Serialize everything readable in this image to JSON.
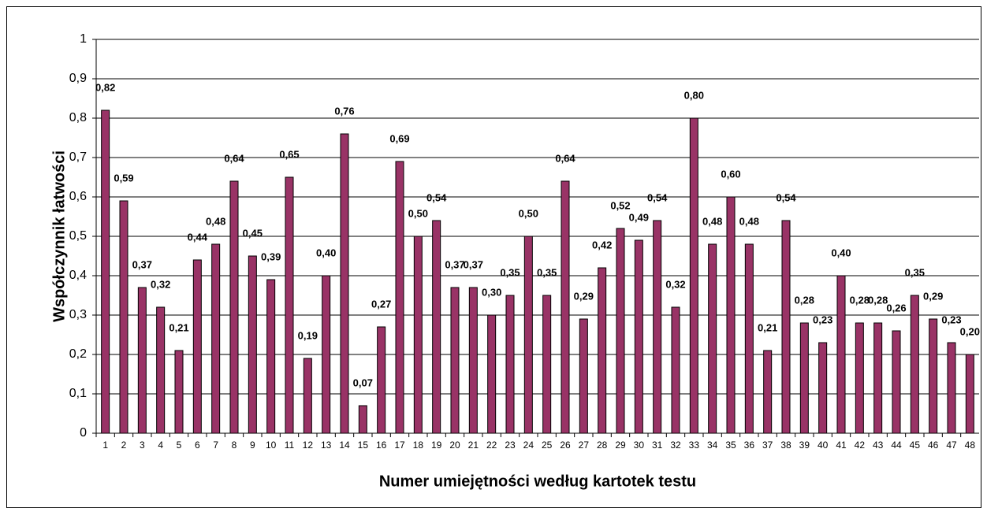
{
  "chart_data": {
    "type": "bar",
    "x_label": "Numer umiejętności według kartotek testu",
    "y_label": "Współczynnik łatwości",
    "categories": [
      "1",
      "2",
      "3",
      "4",
      "5",
      "6",
      "7",
      "8",
      "9",
      "10",
      "11",
      "12",
      "13",
      "14",
      "15",
      "16",
      "17",
      "18",
      "19",
      "20",
      "21",
      "22",
      "23",
      "24",
      "25",
      "26",
      "27",
      "28",
      "29",
      "30",
      "31",
      "32",
      "33",
      "34",
      "35",
      "36",
      "37",
      "38",
      "39",
      "40",
      "41",
      "42",
      "43",
      "44",
      "45",
      "46",
      "47",
      "48"
    ],
    "values": [
      0.82,
      0.59,
      0.37,
      0.32,
      0.21,
      0.44,
      0.48,
      0.64,
      0.45,
      0.39,
      0.65,
      0.19,
      0.4,
      0.76,
      0.07,
      0.27,
      0.69,
      0.5,
      0.54,
      0.37,
      0.37,
      0.3,
      0.35,
      0.5,
      0.35,
      0.64,
      0.29,
      0.42,
      0.52,
      0.49,
      0.54,
      0.32,
      0.8,
      0.48,
      0.6,
      0.48,
      0.21,
      0.54,
      0.28,
      0.23,
      0.4,
      0.28,
      0.28,
      0.26,
      0.35,
      0.29,
      0.23,
      0.2
    ],
    "value_labels": [
      "0,82",
      "0,59",
      "0,37",
      "0,32",
      "0,21",
      "0,44",
      "0,48",
      "0,64",
      "0,45",
      "0,39",
      "0,65",
      "0,19",
      "0,40",
      "0,76",
      "0,07",
      "0,27",
      "0,69",
      "0,50",
      "0,54",
      "0,37",
      "0,37",
      "0,30",
      "0,35",
      "0,50",
      "0,35",
      "0,64",
      "0,29",
      "0,42",
      "0,52",
      "0,49",
      "0,54",
      "0,32",
      "0,80",
      "0,48",
      "0,60",
      "0,48",
      "0,21",
      "0,54",
      "0,28",
      "0,23",
      "0,40",
      "0,28",
      "0,28",
      "0,26",
      "0,35",
      "0,29",
      "0,23",
      "0,20"
    ],
    "color": "#993366",
    "ylim": [
      0,
      1
    ],
    "yticks": [
      0,
      {
        "value": 0.1,
        "label": "0,1"
      },
      {
        "value": 0.2,
        "label": "0,2"
      },
      {
        "value": 0.3,
        "label": "0,3"
      },
      {
        "value": 0.4,
        "label": "0,4"
      },
      {
        "value": 0.5,
        "label": "0,5"
      },
      {
        "value": 0.6,
        "label": "0,6"
      },
      {
        "value": 0.7,
        "label": "0,7"
      },
      {
        "value": 0.8,
        "label": "0,8"
      },
      {
        "value": 0.9,
        "label": "0,9"
      },
      1
    ],
    "grid": true
  }
}
